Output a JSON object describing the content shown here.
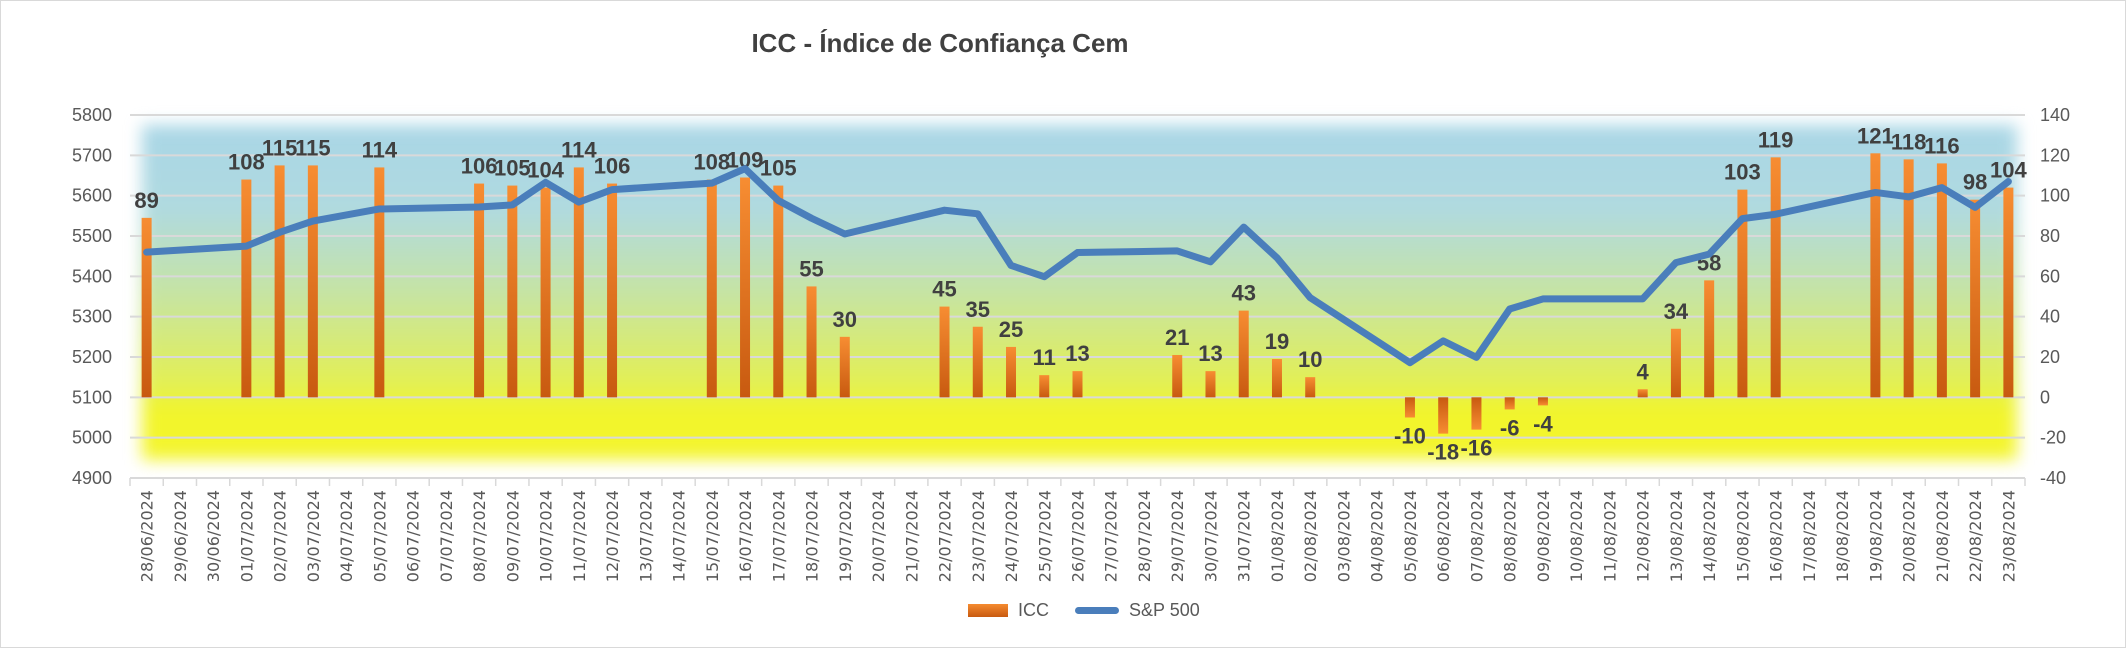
{
  "chart_data": {
    "type": "bar+line",
    "title": "ICC - Índice de Confiança Cem",
    "categories": [
      "28/06/2024",
      "29/06/2024",
      "30/06/2024",
      "01/07/2024",
      "02/07/2024",
      "03/07/2024",
      "04/07/2024",
      "05/07/2024",
      "06/07/2024",
      "07/07/2024",
      "08/07/2024",
      "09/07/2024",
      "10/07/2024",
      "11/07/2024",
      "12/07/2024",
      "13/07/2024",
      "14/07/2024",
      "15/07/2024",
      "16/07/2024",
      "17/07/2024",
      "18/07/2024",
      "19/07/2024",
      "20/07/2024",
      "21/07/2024",
      "22/07/2024",
      "23/07/2024",
      "24/07/2024",
      "25/07/2024",
      "26/07/2024",
      "27/07/2024",
      "28/07/2024",
      "29/07/2024",
      "30/07/2024",
      "31/07/2024",
      "01/08/2024",
      "02/08/2024",
      "03/08/2024",
      "04/08/2024",
      "05/08/2024",
      "06/08/2024",
      "07/08/2024",
      "08/08/2024",
      "09/08/2024",
      "10/08/2024",
      "11/08/2024",
      "12/08/2024",
      "13/08/2024",
      "14/08/2024",
      "15/08/2024",
      "16/08/2024",
      "17/08/2024",
      "18/08/2024",
      "19/08/2024",
      "20/08/2024",
      "21/08/2024",
      "22/08/2024",
      "23/08/2024"
    ],
    "series": [
      {
        "name": "ICC",
        "type": "bar",
        "axis": "right",
        "color": "#ed7d31",
        "values": [
          89,
          null,
          null,
          108,
          115,
          115,
          null,
          114,
          null,
          null,
          106,
          105,
          104,
          114,
          106,
          null,
          null,
          108,
          109,
          105,
          55,
          30,
          null,
          null,
          45,
          35,
          25,
          11,
          13,
          null,
          null,
          21,
          13,
          43,
          19,
          10,
          null,
          null,
          -10,
          -18,
          -16,
          -6,
          -4,
          null,
          null,
          4,
          34,
          58,
          103,
          119,
          null,
          null,
          121,
          118,
          116,
          98,
          104
        ]
      },
      {
        "name": "S&P 500",
        "type": "line",
        "axis": "left",
        "color": "#4a7ebb",
        "values": [
          5460,
          null,
          null,
          5475,
          5509,
          5537,
          null,
          5567,
          null,
          null,
          5572,
          5577,
          5633,
          5584,
          5615,
          null,
          null,
          5631,
          5667,
          5588,
          5544,
          5505,
          null,
          null,
          5564,
          5555,
          5427,
          5399,
          5459,
          null,
          null,
          5463,
          5436,
          5522,
          5446,
          5347,
          null,
          null,
          5186,
          5240,
          5199,
          5319,
          5344,
          null,
          null,
          5344,
          5434,
          5455,
          5543,
          5554,
          null,
          null,
          5608,
          5597,
          5620,
          5571,
          5635
        ]
      }
    ],
    "left_axis": {
      "min": 4900,
      "max": 5800,
      "ticks": [
        "4900",
        "5000",
        "5100",
        "5200",
        "5300",
        "5400",
        "5500",
        "5600",
        "5700",
        "5800"
      ]
    },
    "right_axis": {
      "min": -40,
      "max": 140,
      "ticks": [
        "-40",
        "-20",
        "0",
        "20",
        "40",
        "60",
        "80",
        "100",
        "120",
        "140"
      ]
    },
    "legend": {
      "position": "bottom",
      "items": [
        "ICC",
        "S&P 500"
      ]
    },
    "grid": true
  }
}
